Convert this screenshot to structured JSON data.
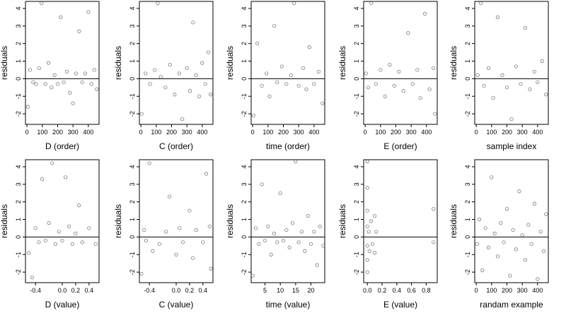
{
  "figure": {
    "panels": [
      {
        "id": "d-order",
        "xlabel": "D (order)",
        "ylabel": "residuals",
        "xticks": [
          "0",
          "100",
          "200",
          "300",
          "400"
        ],
        "yticks": [
          "-2",
          "-1",
          "0",
          "1",
          "2",
          "3",
          "4"
        ]
      },
      {
        "id": "c-order",
        "xlabel": "C (order)",
        "ylabel": "residuals",
        "xticks": [
          "0",
          "100",
          "200",
          "300",
          "400"
        ],
        "yticks": [
          "-2",
          "-1",
          "0",
          "1",
          "2",
          "3",
          "4"
        ]
      },
      {
        "id": "time-order",
        "xlabel": "time (order)",
        "ylabel": "residuals",
        "xticks": [
          "0",
          "100",
          "200",
          "300",
          "400"
        ],
        "yticks": [
          "-2",
          "-1",
          "0",
          "1",
          "2",
          "3",
          "4"
        ]
      },
      {
        "id": "e-order",
        "xlabel": "E (order)",
        "ylabel": "residuals",
        "xticks": [
          "0",
          "100",
          "200",
          "300",
          "400"
        ],
        "yticks": [
          "-2",
          "-1",
          "0",
          "1",
          "2",
          "3",
          "4"
        ]
      },
      {
        "id": "sample-index",
        "xlabel": "sample index",
        "ylabel": "residuals",
        "xticks": [
          "0",
          "100",
          "200",
          "300",
          "400"
        ],
        "yticks": [
          "-2",
          "-1",
          "0",
          "1",
          "2",
          "3",
          "4"
        ]
      },
      {
        "id": "d-value",
        "xlabel": "D (value)",
        "ylabel": "residuals",
        "xticks": [
          "-0.4",
          "0.0",
          "0.2",
          "0.4"
        ],
        "yticks": [
          "-2",
          "-1",
          "0",
          "1",
          "2",
          "3",
          "4"
        ]
      },
      {
        "id": "c-value",
        "xlabel": "C (value)",
        "ylabel": "residuals",
        "xticks": [
          "-0.4",
          "0.0",
          "0.2",
          "0.4"
        ],
        "yticks": [
          "-2",
          "-1",
          "0",
          "1",
          "2",
          "3",
          "4"
        ]
      },
      {
        "id": "time-value",
        "xlabel": "time (value)",
        "ylabel": "residuals",
        "xticks": [
          "5",
          "10",
          "15",
          "20"
        ],
        "yticks": [
          "-2",
          "-1",
          "0",
          "1",
          "2",
          "3",
          "4"
        ]
      },
      {
        "id": "e-value",
        "xlabel": "E (value)",
        "ylabel": "residuals",
        "xticks": [
          "0.0",
          "0.2",
          "0.4",
          "0.6",
          "0.8"
        ],
        "yticks": [
          "-2",
          "-1",
          "0",
          "1",
          "2",
          "3",
          "4"
        ]
      },
      {
        "id": "randam-example",
        "xlabel": "randam example",
        "ylabel": "residuals",
        "xticks": [
          "0",
          "100",
          "200",
          "300",
          "400"
        ],
        "yticks": [
          "-2",
          "-1",
          "0",
          "1",
          "2",
          "3",
          "4"
        ]
      }
    ]
  },
  "chart_data": [
    {
      "type": "scatter",
      "xlabel": "D (order)",
      "ylabel": "residuals",
      "xlim": [
        -10,
        470
      ],
      "ylim": [
        -2.6,
        4.4
      ],
      "reference_line_y": 0,
      "grid": false,
      "marker": "open-circle",
      "points": [
        [
          5,
          -1.6
        ],
        [
          20,
          0.5
        ],
        [
          40,
          -0.2
        ],
        [
          60,
          -0.3
        ],
        [
          80,
          0.6
        ],
        [
          95,
          4.3
        ],
        [
          120,
          -0.3
        ],
        [
          140,
          0.9
        ],
        [
          160,
          -0.5
        ],
        [
          180,
          0.2
        ],
        [
          200,
          -0.3
        ],
        [
          220,
          3.5
        ],
        [
          240,
          -0.2
        ],
        [
          260,
          0.4
        ],
        [
          280,
          -0.8
        ],
        [
          300,
          -1.4
        ],
        [
          320,
          0.3
        ],
        [
          340,
          2.7
        ],
        [
          360,
          -0.2
        ],
        [
          380,
          0.3
        ],
        [
          400,
          3.8
        ],
        [
          420,
          -0.3
        ],
        [
          440,
          0.5
        ],
        [
          455,
          -0.6
        ]
      ]
    },
    {
      "type": "scatter",
      "xlabel": "C (order)",
      "ylabel": "residuals",
      "xlim": [
        -10,
        470
      ],
      "ylim": [
        -2.6,
        4.4
      ],
      "reference_line_y": 0,
      "grid": false,
      "marker": "open-circle",
      "points": [
        [
          5,
          -2.0
        ],
        [
          30,
          0.3
        ],
        [
          60,
          -0.3
        ],
        [
          90,
          0.5
        ],
        [
          110,
          4.3
        ],
        [
          130,
          0.1
        ],
        [
          160,
          -0.5
        ],
        [
          190,
          0.8
        ],
        [
          220,
          -0.9
        ],
        [
          250,
          0.3
        ],
        [
          270,
          -2.3
        ],
        [
          300,
          0.6
        ],
        [
          320,
          -0.7
        ],
        [
          340,
          3.2
        ],
        [
          360,
          0.2
        ],
        [
          380,
          -1.0
        ],
        [
          400,
          0.9
        ],
        [
          420,
          -0.3
        ],
        [
          440,
          1.5
        ],
        [
          455,
          -0.9
        ]
      ]
    },
    {
      "type": "scatter",
      "xlabel": "time (order)",
      "ylabel": "residuals",
      "xlim": [
        -10,
        470
      ],
      "ylim": [
        -2.6,
        4.4
      ],
      "reference_line_y": 0,
      "grid": false,
      "marker": "open-circle",
      "points": [
        [
          5,
          -2.1
        ],
        [
          30,
          2.0
        ],
        [
          60,
          -0.4
        ],
        [
          90,
          0.3
        ],
        [
          110,
          -1.0
        ],
        [
          140,
          3.0
        ],
        [
          160,
          -0.2
        ],
        [
          190,
          0.7
        ],
        [
          220,
          -0.3
        ],
        [
          250,
          0.2
        ],
        [
          270,
          4.3
        ],
        [
          300,
          -0.4
        ],
        [
          330,
          0.6
        ],
        [
          350,
          -0.6
        ],
        [
          370,
          1.8
        ],
        [
          400,
          -0.3
        ],
        [
          430,
          0.4
        ],
        [
          455,
          -1.4
        ]
      ]
    },
    {
      "type": "scatter",
      "xlabel": "E (order)",
      "ylabel": "residuals",
      "xlim": [
        -10,
        470
      ],
      "ylim": [
        -2.6,
        4.4
      ],
      "reference_line_y": 0,
      "grid": false,
      "marker": "open-circle",
      "points": [
        [
          5,
          0.3
        ],
        [
          20,
          -0.5
        ],
        [
          40,
          4.3
        ],
        [
          70,
          -0.3
        ],
        [
          100,
          0.5
        ],
        [
          130,
          -1.0
        ],
        [
          160,
          0.8
        ],
        [
          190,
          -0.4
        ],
        [
          220,
          0.4
        ],
        [
          250,
          -0.7
        ],
        [
          280,
          2.6
        ],
        [
          310,
          -0.3
        ],
        [
          340,
          0.5
        ],
        [
          360,
          -1.1
        ],
        [
          390,
          3.7
        ],
        [
          420,
          -0.6
        ],
        [
          445,
          0.6
        ],
        [
          455,
          -2.0
        ]
      ]
    },
    {
      "type": "scatter",
      "xlabel": "sample index",
      "ylabel": "residuals",
      "xlim": [
        -10,
        470
      ],
      "ylim": [
        -2.6,
        4.4
      ],
      "reference_line_y": 0,
      "grid": false,
      "marker": "open-circle",
      "points": [
        [
          10,
          0.2
        ],
        [
          30,
          4.3
        ],
        [
          50,
          -0.4
        ],
        [
          80,
          0.6
        ],
        [
          110,
          -1.1
        ],
        [
          140,
          3.5
        ],
        [
          170,
          0.2
        ],
        [
          200,
          -0.5
        ],
        [
          230,
          -2.3
        ],
        [
          260,
          0.7
        ],
        [
          290,
          -0.3
        ],
        [
          320,
          2.9
        ],
        [
          350,
          -0.6
        ],
        [
          380,
          0.4
        ],
        [
          400,
          -0.2
        ],
        [
          430,
          1.0
        ],
        [
          455,
          -0.9
        ]
      ]
    },
    {
      "type": "scatter",
      "xlabel": "D (value)",
      "ylabel": "residuals",
      "xlim": [
        -0.55,
        0.55
      ],
      "ylim": [
        -2.6,
        4.4
      ],
      "reference_line_y": 0,
      "grid": false,
      "marker": "open-circle",
      "points": [
        [
          -0.5,
          -0.9
        ],
        [
          -0.45,
          -2.3
        ],
        [
          -0.4,
          0.5
        ],
        [
          -0.35,
          -0.3
        ],
        [
          -0.3,
          3.3
        ],
        [
          -0.25,
          -0.2
        ],
        [
          -0.2,
          0.8
        ],
        [
          -0.15,
          4.2
        ],
        [
          -0.1,
          -0.4
        ],
        [
          -0.05,
          0.3
        ],
        [
          0.0,
          -0.2
        ],
        [
          0.05,
          3.4
        ],
        [
          0.1,
          0.6
        ],
        [
          0.15,
          -0.4
        ],
        [
          0.2,
          0.2
        ],
        [
          0.25,
          1.8
        ],
        [
          0.3,
          -0.3
        ],
        [
          0.4,
          0.5
        ],
        [
          0.5,
          -0.4
        ]
      ]
    },
    {
      "type": "scatter",
      "xlabel": "C (value)",
      "ylabel": "residuals",
      "xlim": [
        -0.55,
        0.55
      ],
      "ylim": [
        -2.6,
        4.4
      ],
      "reference_line_y": 0,
      "grid": false,
      "marker": "open-circle",
      "points": [
        [
          -0.52,
          -2.1
        ],
        [
          -0.48,
          0.4
        ],
        [
          -0.45,
          -0.2
        ],
        [
          -0.4,
          4.2
        ],
        [
          -0.35,
          -0.8
        ],
        [
          -0.25,
          -0.4
        ],
        [
          -0.15,
          0.3
        ],
        [
          -0.1,
          2.3
        ],
        [
          0.0,
          -1.0
        ],
        [
          0.05,
          0.5
        ],
        [
          0.1,
          -0.3
        ],
        [
          0.2,
          1.5
        ],
        [
          0.25,
          -1.2
        ],
        [
          0.3,
          0.4
        ],
        [
          0.4,
          -0.3
        ],
        [
          0.45,
          3.6
        ],
        [
          0.5,
          0.6
        ],
        [
          0.52,
          -1.8
        ]
      ]
    },
    {
      "type": "scatter",
      "xlabel": "time (value)",
      "ylabel": "residuals",
      "xlim": [
        0.5,
        24.5
      ],
      "ylim": [
        -2.6,
        4.4
      ],
      "reference_line_y": 0,
      "grid": false,
      "marker": "open-circle",
      "points": [
        [
          1,
          -2.2
        ],
        [
          2,
          0.5
        ],
        [
          3,
          -0.4
        ],
        [
          4,
          3.0
        ],
        [
          5,
          -0.2
        ],
        [
          6,
          0.6
        ],
        [
          7,
          -1.0
        ],
        [
          8,
          0.2
        ],
        [
          9,
          -0.3
        ],
        [
          10,
          2.5
        ],
        [
          11,
          -0.2
        ],
        [
          12,
          0.4
        ],
        [
          13,
          -0.6
        ],
        [
          14,
          0.8
        ],
        [
          15,
          4.3
        ],
        [
          16,
          -0.3
        ],
        [
          17,
          0.3
        ],
        [
          18,
          -0.8
        ],
        [
          19,
          1.2
        ],
        [
          20,
          -0.4
        ],
        [
          21,
          0.3
        ],
        [
          22,
          -1.6
        ],
        [
          23,
          0.6
        ],
        [
          24,
          -0.5
        ]
      ]
    },
    {
      "type": "scatter",
      "xlabel": "E (value)",
      "ylabel": "residuals",
      "xlim": [
        -0.05,
        0.95
      ],
      "ylim": [
        -2.6,
        4.4
      ],
      "reference_line_y": 0,
      "grid": false,
      "marker": "open-circle",
      "points": [
        [
          0.0,
          4.3
        ],
        [
          0.0,
          2.8
        ],
        [
          0.0,
          1.5
        ],
        [
          0.0,
          0.6
        ],
        [
          0.0,
          -0.5
        ],
        [
          0.0,
          -1.3
        ],
        [
          0.0,
          -2.0
        ],
        [
          0.02,
          0.3
        ],
        [
          0.03,
          -0.8
        ],
        [
          0.05,
          0.9
        ],
        [
          0.07,
          -0.4
        ],
        [
          0.1,
          1.2
        ],
        [
          0.1,
          -0.9
        ],
        [
          0.12,
          0.3
        ],
        [
          0.9,
          1.6
        ],
        [
          0.9,
          -0.3
        ]
      ]
    },
    {
      "type": "scatter",
      "xlabel": "randam example",
      "ylabel": "residuals",
      "xlim": [
        -10,
        470
      ],
      "ylim": [
        -2.6,
        4.4
      ],
      "reference_line_y": 0,
      "grid": false,
      "marker": "open-circle",
      "points": [
        [
          5,
          -0.4
        ],
        [
          20,
          1.0
        ],
        [
          40,
          -1.9
        ],
        [
          60,
          0.5
        ],
        [
          80,
          -0.6
        ],
        [
          100,
          3.4
        ],
        [
          120,
          0.2
        ],
        [
          140,
          -1.1
        ],
        [
          160,
          0.8
        ],
        [
          180,
          -0.3
        ],
        [
          200,
          1.6
        ],
        [
          220,
          -2.2
        ],
        [
          240,
          0.4
        ],
        [
          260,
          -0.7
        ],
        [
          280,
          2.6
        ],
        [
          300,
          0.1
        ],
        [
          320,
          -1.3
        ],
        [
          340,
          0.7
        ],
        [
          360,
          -0.4
        ],
        [
          380,
          1.9
        ],
        [
          400,
          -2.4
        ],
        [
          420,
          0.3
        ],
        [
          440,
          -0.8
        ],
        [
          455,
          1.3
        ]
      ]
    }
  ]
}
